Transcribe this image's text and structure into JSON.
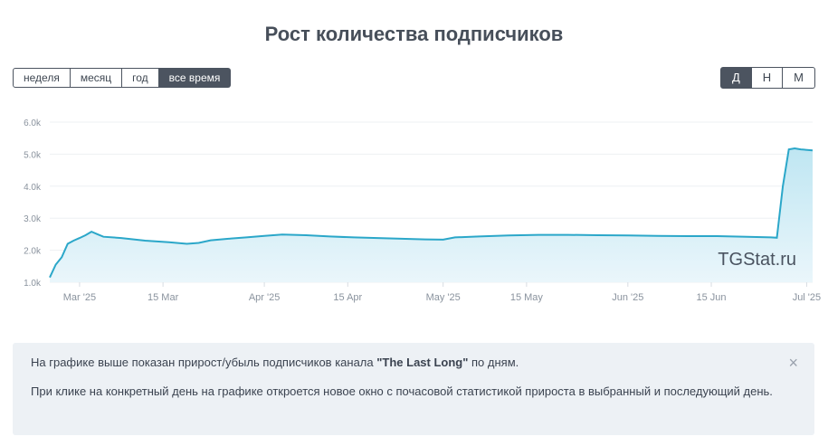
{
  "title": "Рост количества подписчиков",
  "period_buttons": [
    {
      "label": "неделя",
      "active": false
    },
    {
      "label": "месяц",
      "active": false
    },
    {
      "label": "год",
      "active": false
    },
    {
      "label": "все время",
      "active": true
    }
  ],
  "granularity_buttons": [
    {
      "label": "Д",
      "active": true
    },
    {
      "label": "Н",
      "active": false
    },
    {
      "label": "М",
      "active": false
    }
  ],
  "watermark": "TGStat.ru",
  "info": {
    "line1_prefix": "На графике выше показан прирост/убыль подписчиков канала ",
    "channel": "\"The Last Long\"",
    "line1_suffix": " по дням.",
    "line2": "При клике на конкретный день на графике откроется новое окно с почасовой статистикой прироста в выбранный и последующий день.",
    "close_symbol": "×"
  },
  "colors": {
    "line": "#2ba7c9",
    "fill_top": "#bfe6f2",
    "fill_bottom": "#eaf6fb",
    "active_button": "#4c5460"
  },
  "chart_data": {
    "type": "area",
    "x_start": "2025-02-24",
    "x_end": "2025-07-02",
    "ylim": [
      1000,
      6000
    ],
    "y_ticks": [
      "1.0k",
      "2.0k",
      "3.0k",
      "4.0k",
      "5.0k",
      "6.0k"
    ],
    "x_ticks": [
      "Mar '25",
      "15 Mar",
      "Apr '25",
      "15 Apr",
      "May '25",
      "15 May",
      "Jun '25",
      "15 Jun",
      "Jul '25"
    ],
    "grid": true,
    "series": [
      {
        "points": [
          [
            "2025-02-24",
            1150
          ],
          [
            "2025-02-25",
            1550
          ],
          [
            "2025-02-26",
            1780
          ],
          [
            "2025-02-27",
            2200
          ],
          [
            "2025-02-28",
            2300
          ],
          [
            "2025-03-01",
            2380
          ],
          [
            "2025-03-02",
            2470
          ],
          [
            "2025-03-03",
            2580
          ],
          [
            "2025-03-04",
            2500
          ],
          [
            "2025-03-05",
            2420
          ],
          [
            "2025-03-08",
            2380
          ],
          [
            "2025-03-12",
            2300
          ],
          [
            "2025-03-16",
            2250
          ],
          [
            "2025-03-19",
            2200
          ],
          [
            "2025-03-21",
            2230
          ],
          [
            "2025-03-23",
            2310
          ],
          [
            "2025-03-26",
            2360
          ],
          [
            "2025-03-29",
            2400
          ],
          [
            "2025-04-01",
            2450
          ],
          [
            "2025-04-04",
            2490
          ],
          [
            "2025-04-08",
            2470
          ],
          [
            "2025-04-12",
            2430
          ],
          [
            "2025-04-16",
            2400
          ],
          [
            "2025-04-20",
            2380
          ],
          [
            "2025-04-24",
            2360
          ],
          [
            "2025-04-28",
            2340
          ],
          [
            "2025-05-01",
            2330
          ],
          [
            "2025-05-03",
            2400
          ],
          [
            "2025-05-07",
            2430
          ],
          [
            "2025-05-12",
            2460
          ],
          [
            "2025-05-17",
            2480
          ],
          [
            "2025-05-22",
            2480
          ],
          [
            "2025-05-27",
            2470
          ],
          [
            "2025-06-01",
            2460
          ],
          [
            "2025-06-06",
            2450
          ],
          [
            "2025-06-11",
            2440
          ],
          [
            "2025-06-16",
            2440
          ],
          [
            "2025-06-21",
            2420
          ],
          [
            "2025-06-25",
            2400
          ],
          [
            "2025-06-26",
            2390
          ],
          [
            "2025-06-27",
            4000
          ],
          [
            "2025-06-28",
            5150
          ],
          [
            "2025-06-29",
            5180
          ],
          [
            "2025-06-30",
            5150
          ],
          [
            "2025-07-02",
            5120
          ]
        ]
      }
    ]
  }
}
